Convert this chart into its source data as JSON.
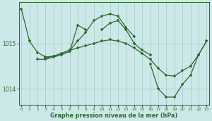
{
  "xlabel": "Graphe pression niveau de la mer (hPa)",
  "bg_color": "#cce8e8",
  "grid_color": "#aacccc",
  "line_color": "#2d6a2d",
  "hours": [
    0,
    1,
    2,
    3,
    4,
    5,
    6,
    7,
    8,
    9,
    10,
    11,
    12,
    13,
    14,
    15,
    16,
    17,
    18,
    19,
    20,
    21,
    22,
    23
  ],
  "s1": [
    1015.75,
    1015.05,
    null,
    1014.7,
    null,
    null,
    null,
    null,
    null,
    null,
    null,
    null,
    null,
    null,
    null,
    null,
    null,
    null,
    null,
    null,
    null,
    null,
    null,
    null
  ],
  "s2": [
    null,
    1015.05,
    1014.8,
    1014.7,
    1014.72,
    1014.78,
    1014.85,
    1015.05,
    1015.25,
    1015.5,
    1015.6,
    1015.65,
    1015.6,
    1015.35,
    1015.15,
    null,
    null,
    null,
    null,
    null,
    null,
    null,
    null,
    null
  ],
  "s3": [
    null,
    null,
    1014.65,
    1014.65,
    1014.7,
    1014.75,
    1014.82,
    1015.4,
    1015.3,
    null,
    1015.3,
    1015.45,
    1015.5,
    1015.3,
    1015.0,
    1014.85,
    1014.75,
    null,
    null,
    null,
    null,
    null,
    null,
    null
  ],
  "s4": [
    null,
    null,
    null,
    1014.68,
    1014.72,
    1014.78,
    1014.85,
    1014.9,
    1014.95,
    1015.0,
    1015.05,
    1015.08,
    1015.05,
    1015.0,
    1014.9,
    1014.78,
    1014.65,
    1014.45,
    1014.3,
    1014.28,
    1014.4,
    1014.5,
    1014.75,
    1015.05
  ],
  "s5": [
    null,
    null,
    null,
    null,
    null,
    null,
    null,
    null,
    null,
    null,
    null,
    null,
    null,
    null,
    null,
    null,
    1014.55,
    1014.0,
    1013.82,
    1013.82,
    1014.1,
    1014.3,
    1014.75,
    1015.05
  ],
  "ylim": [
    1013.65,
    1015.9
  ],
  "yticks": [
    1014.0,
    1015.0
  ],
  "xlim": [
    -0.3,
    23.3
  ]
}
